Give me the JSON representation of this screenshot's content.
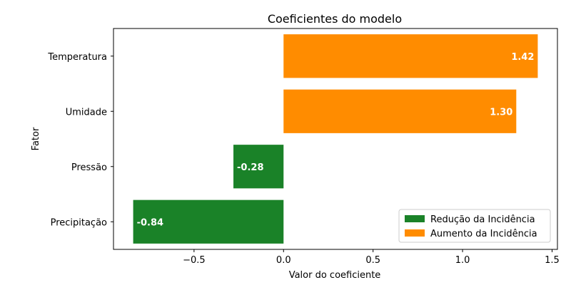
{
  "chart_data": {
    "type": "bar",
    "orientation": "horizontal",
    "title": "Coeficientes do modelo",
    "xlabel": "Valor do coeficiente",
    "ylabel": "Fator",
    "categories": [
      "Temperatura",
      "Umidade",
      "Pressão",
      "Precipitação"
    ],
    "values": [
      1.42,
      1.3,
      -0.28,
      -0.84
    ],
    "value_labels": [
      "1.42",
      "1.30",
      "-0.28",
      "-0.84"
    ],
    "xlim": [
      -0.95,
      1.53
    ],
    "xticks": [
      -0.5,
      0.0,
      0.5,
      1.0,
      1.5
    ],
    "xtick_labels": [
      "−0.5",
      "0.0",
      "0.5",
      "1.0",
      "1.5"
    ],
    "grid": false,
    "legend_position": "lower-right",
    "legend": [
      {
        "label": "Redução da Incidência",
        "color": "#1a8228"
      },
      {
        "label": "Aumento da Incidência",
        "color": "#ff8c00"
      }
    ],
    "colors": {
      "negative": "#1a8228",
      "positive": "#ff8c00"
    }
  }
}
